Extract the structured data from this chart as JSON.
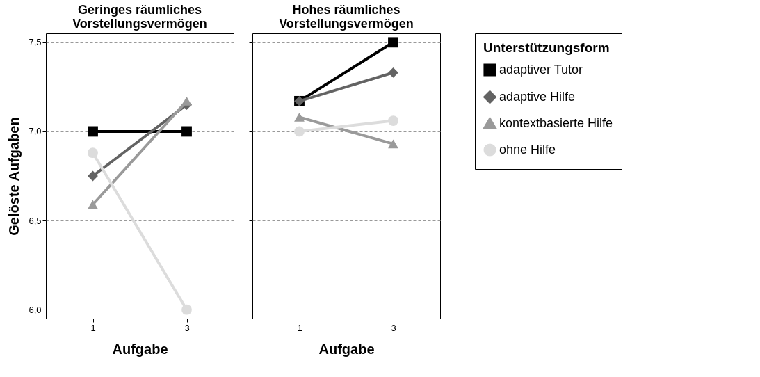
{
  "chart_data": [
    {
      "type": "line",
      "title": "Geringes räumliches\nVorstellungsvermögen",
      "xlabel": "Aufgabe",
      "ylabel": "Gelöste Aufgaben",
      "categories": [
        "1",
        "3"
      ],
      "ylim": [
        5.95,
        7.55
      ],
      "yticks": [
        {
          "value": 6,
          "label": "6,0"
        },
        {
          "value": 6.5,
          "label": "6,5"
        },
        {
          "value": 7,
          "label": "7,0"
        },
        {
          "value": 7.5,
          "label": "7,5"
        }
      ],
      "grid": "y",
      "series": [
        {
          "color": "#000000",
          "marker": "square",
          "values": [
            7.0,
            7.0
          ]
        },
        {
          "color": "#636363",
          "marker": "diamond",
          "values": [
            6.75,
            7.15
          ]
        },
        {
          "color": "#9a9a9a",
          "marker": "triangle",
          "values": [
            6.59,
            7.17
          ]
        },
        {
          "color": "#dcdcdc",
          "marker": "circle",
          "values": [
            6.88,
            6.0
          ]
        }
      ]
    },
    {
      "type": "line",
      "title": "Hohes räumliches\nVorstellungsvermögen",
      "xlabel": "Aufgabe",
      "categories": [
        "1",
        "3"
      ],
      "ylim": [
        5.95,
        7.55
      ],
      "yticks": [
        {
          "value": 6,
          "label": null
        },
        {
          "value": 6.5,
          "label": null
        },
        {
          "value": 7,
          "label": null
        },
        {
          "value": 7.5,
          "label": null
        }
      ],
      "grid": "y",
      "tick_labels": "x",
      "legend": "right",
      "legend_title": "Unterstützungsform",
      "series": [
        {
          "name": "adaptiver Tutor",
          "color": "#000000",
          "marker": "square",
          "values": [
            7.17,
            7.5
          ]
        },
        {
          "name": "adaptive Hilfe",
          "color": "#636363",
          "marker": "diamond",
          "values": [
            7.17,
            7.33
          ]
        },
        {
          "name": "kontextbasierte Hilfe",
          "color": "#9a9a9a",
          "marker": "triangle",
          "values": [
            7.08,
            6.93
          ]
        },
        {
          "name": "ohne Hilfe",
          "color": "#dcdcdc",
          "marker": "circle",
          "values": [
            7.0,
            7.06
          ]
        }
      ]
    }
  ]
}
